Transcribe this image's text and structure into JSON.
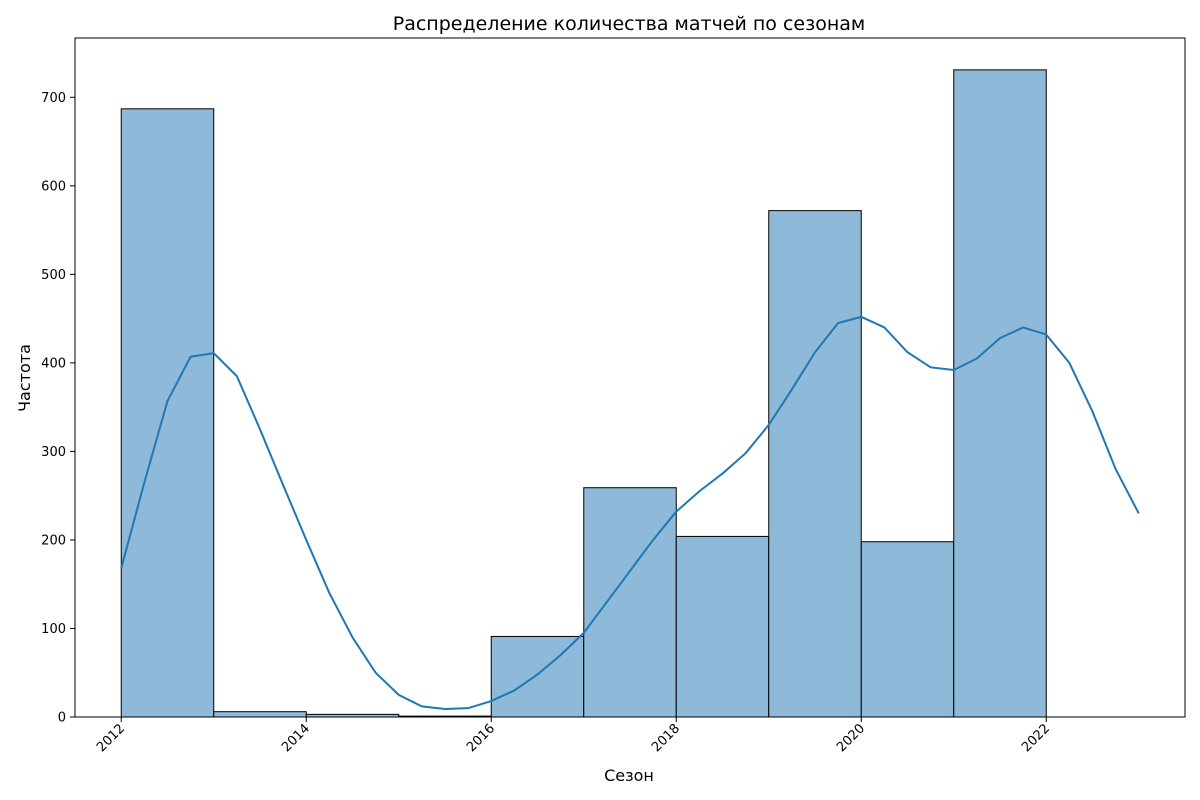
{
  "chart_data": {
    "type": "bar",
    "title": "Распределение количества матчей по сезонам",
    "xlabel": "Сезон",
    "ylabel": "Частота",
    "xlim": [
      2011.5,
      2023.5
    ],
    "ylim": [
      0,
      767
    ],
    "xticks": [
      "2012",
      "2014",
      "2016",
      "2018",
      "2020",
      "2022"
    ],
    "yticks": [
      "0",
      "100",
      "200",
      "300",
      "400",
      "500",
      "600",
      "700"
    ],
    "bins": [
      {
        "x0": 2012.0,
        "x1": 2013.0,
        "value": 687
      },
      {
        "x0": 2013.0,
        "x1": 2014.0,
        "value": 6
      },
      {
        "x0": 2014.0,
        "x1": 2015.0,
        "value": 3
      },
      {
        "x0": 2015.0,
        "x1": 2016.0,
        "value": 1
      },
      {
        "x0": 2016.0,
        "x1": 2017.0,
        "value": 91
      },
      {
        "x0": 2017.0,
        "x1": 2018.0,
        "value": 259
      },
      {
        "x0": 2018.0,
        "x1": 2019.0,
        "value": 204
      },
      {
        "x0": 2019.0,
        "x1": 2020.0,
        "value": 572
      },
      {
        "x0": 2020.0,
        "x1": 2021.0,
        "value": 198
      },
      {
        "x0": 2021.0,
        "x1": 2022.0,
        "value": 731
      }
    ],
    "kde": {
      "x": [
        2012.0,
        2012.25,
        2012.5,
        2012.75,
        2013.0,
        2013.25,
        2013.5,
        2013.75,
        2014.0,
        2014.25,
        2014.5,
        2014.75,
        2015.0,
        2015.25,
        2015.5,
        2015.75,
        2016.0,
        2016.25,
        2016.5,
        2016.75,
        2017.0,
        2017.25,
        2017.5,
        2017.75,
        2018.0,
        2018.25,
        2018.5,
        2018.75,
        2019.0,
        2019.25,
        2019.5,
        2019.75,
        2020.0,
        2020.25,
        2020.5,
        2020.75,
        2021.0,
        2021.25,
        2021.5,
        2021.75,
        2022.0,
        2022.25,
        2022.5,
        2022.75,
        2023.0
      ],
      "y": [
        168,
        265,
        357,
        407,
        411,
        385,
        325,
        262,
        200,
        140,
        90,
        50,
        25,
        12,
        9,
        10,
        18,
        30,
        48,
        70,
        95,
        130,
        165,
        200,
        232,
        255,
        275,
        298,
        330,
        370,
        412,
        445,
        452,
        440,
        412,
        395,
        392,
        405,
        428,
        440,
        432,
        400,
        345,
        280,
        230
      ],
      "color": "#1f77b4"
    },
    "bar_color": "#8fb9d9",
    "bar_edge_color": "#000000",
    "grid": false,
    "legend": "none"
  }
}
